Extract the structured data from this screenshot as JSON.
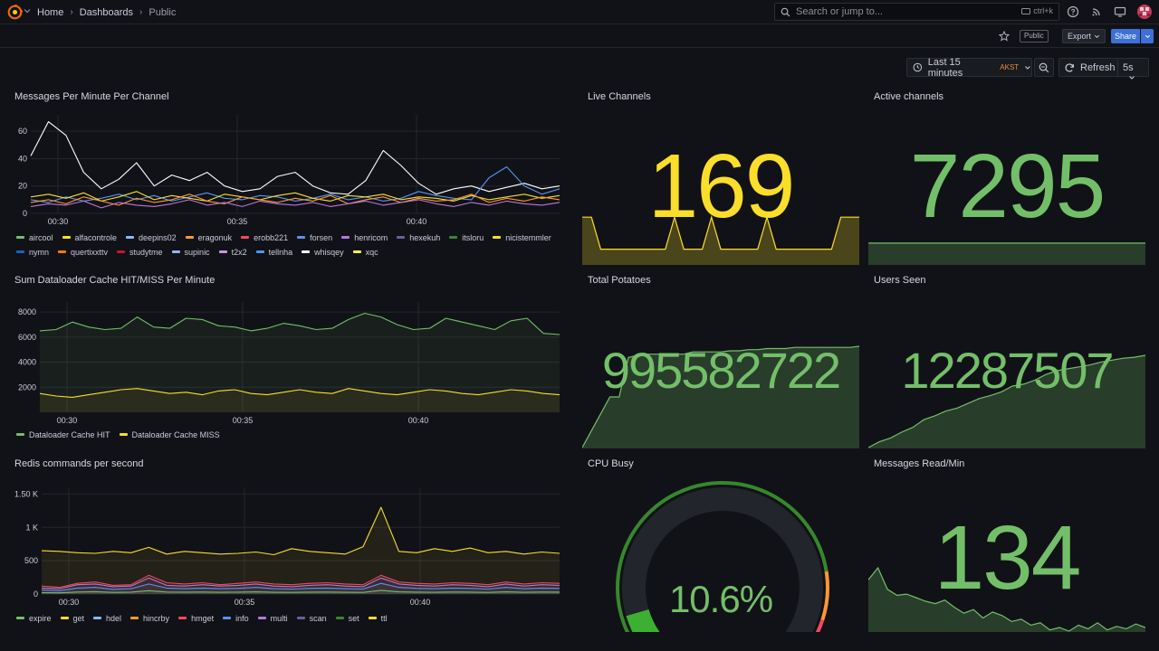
{
  "topbar": {
    "breadcrumb": [
      "Home",
      "Dashboards",
      "Public"
    ],
    "search_placeholder": "Search or jump to...",
    "search_shortcut": "ctrl+k",
    "icons": [
      "grafana-logo",
      "help-icon",
      "news-icon",
      "kiosk-icon",
      "avatar"
    ]
  },
  "toolbar": {
    "public_badge": "Public",
    "export_label": "Export",
    "share_label": "Share",
    "time_range": "Last 15 minutes",
    "timezone": "AKST",
    "refresh_label": "Refresh",
    "refresh_interval": "5s"
  },
  "colors": {
    "background": "#111217",
    "green": "#73bf69",
    "yellow": "#fade2a",
    "orange": "#ff9830",
    "red": "#f2495c",
    "blue": "#5794f2",
    "purple": "#b877d9"
  },
  "panels": {
    "messages": {
      "title": "Messages Per Minute Per Channel",
      "legend": [
        {
          "name": "aircool",
          "color": "#73bf69"
        },
        {
          "name": "alfacontrole",
          "color": "#fade2a"
        },
        {
          "name": "deepins02",
          "color": "#8ab8ff"
        },
        {
          "name": "eragonuk",
          "color": "#ff9830"
        },
        {
          "name": "erobb221",
          "color": "#f2495c"
        },
        {
          "name": "forsen",
          "color": "#5794f2"
        },
        {
          "name": "henricom",
          "color": "#b877d9"
        },
        {
          "name": "hexekuh",
          "color": "#705da0"
        },
        {
          "name": "itsloru",
          "color": "#37872d"
        },
        {
          "name": "nicistemmler",
          "color": "#fade2a"
        },
        {
          "name": "nymn",
          "color": "#1f60c4"
        },
        {
          "name": "quertixxttv",
          "color": "#ff780a"
        },
        {
          "name": "studytme",
          "color": "#c4162a"
        },
        {
          "name": "supinic",
          "color": "#8ab8ff"
        },
        {
          "name": "t2x2",
          "color": "#ca95e5"
        },
        {
          "name": "tellnha",
          "color": "#5794f2"
        },
        {
          "name": "whisqey",
          "color": "#ffffff"
        },
        {
          "name": "xqc",
          "color": "#ffee52"
        }
      ]
    },
    "cache": {
      "title": "Sum Dataloader Cache HIT/MISS Per Minute",
      "legend": [
        {
          "name": "Dataloader Cache HIT",
          "color": "#73bf69"
        },
        {
          "name": "Dataloader Cache MISS",
          "color": "#fade2a"
        }
      ]
    },
    "redis": {
      "title": "Redis commands per second",
      "legend": [
        {
          "name": "expire",
          "color": "#73bf69"
        },
        {
          "name": "get",
          "color": "#fade2a"
        },
        {
          "name": "hdel",
          "color": "#8ab8ff"
        },
        {
          "name": "hincrby",
          "color": "#ff9830"
        },
        {
          "name": "hmget",
          "color": "#f2495c"
        },
        {
          "name": "info",
          "color": "#5794f2"
        },
        {
          "name": "multi",
          "color": "#b877d9"
        },
        {
          "name": "scan",
          "color": "#705da0"
        },
        {
          "name": "set",
          "color": "#37872d"
        },
        {
          "name": "ttl",
          "color": "#fade2a"
        }
      ]
    },
    "live_channels": {
      "title": "Live Channels",
      "value": "169"
    },
    "active_channels": {
      "title": "Active channels",
      "value": "7295"
    },
    "total_potatoes": {
      "title": "Total Potatoes",
      "value": "995582722"
    },
    "users_seen": {
      "title": "Users Seen",
      "value": "12287507"
    },
    "cpu_busy": {
      "title": "CPU Busy",
      "value": "10.6%",
      "percent": 10.6
    },
    "messages_read": {
      "title": "Messages Read/Min",
      "value": "134"
    }
  },
  "chart_data": [
    {
      "type": "line",
      "title": "Messages Per Minute Per Channel",
      "x_ticks": [
        "00:30",
        "00:35",
        "00:40"
      ],
      "y_ticks": [
        "0",
        "20",
        "40",
        "60"
      ],
      "ylim": [
        0,
        72
      ],
      "series": [
        {
          "name": "whisqey",
          "values": [
            42,
            67,
            57,
            30,
            18,
            25,
            37,
            20,
            28,
            24,
            30,
            20,
            16,
            18,
            27,
            30,
            20,
            15,
            14,
            24,
            46,
            35,
            22,
            14,
            18,
            20,
            16,
            19,
            22,
            18,
            20
          ]
        },
        {
          "name": "forsen",
          "values": [
            10,
            8,
            12,
            9,
            11,
            14,
            10,
            13,
            9,
            12,
            15,
            11,
            10,
            13,
            12,
            9,
            11,
            14,
            10,
            12,
            9,
            11,
            16,
            13,
            11,
            10,
            26,
            34,
            20,
            14,
            18
          ]
        },
        {
          "name": "nicistemmler",
          "values": [
            12,
            14,
            11,
            15,
            9,
            12,
            16,
            10,
            13,
            11,
            9,
            14,
            12,
            10,
            13,
            15,
            11,
            9,
            13,
            12,
            14,
            10,
            12,
            11,
            9,
            13,
            10,
            12,
            14,
            11,
            13
          ]
        },
        {
          "name": "eragonuk",
          "values": [
            8,
            10,
            7,
            12,
            9,
            6,
            11,
            8,
            10,
            14,
            9,
            7,
            12,
            10,
            8,
            11,
            9,
            13,
            7,
            10,
            12,
            8,
            11,
            9,
            10,
            14,
            8,
            11,
            9,
            12,
            10
          ]
        },
        {
          "name": "henricom",
          "values": [
            5,
            7,
            6,
            9,
            4,
            8,
            6,
            5,
            7,
            10,
            6,
            8,
            5,
            9,
            7,
            6,
            8,
            5,
            7,
            9,
            6,
            8,
            10,
            7,
            5,
            8,
            6,
            9,
            7,
            6,
            8
          ]
        }
      ]
    },
    {
      "type": "area",
      "title": "Sum Dataloader Cache HIT/MISS Per Minute",
      "x_ticks": [
        "00:30",
        "00:35",
        "00:40"
      ],
      "y_ticks": [
        "2000",
        "4000",
        "6000",
        "8000"
      ],
      "ylim": [
        0,
        8800
      ],
      "series": [
        {
          "name": "Dataloader Cache HIT",
          "values": [
            6500,
            6600,
            7200,
            6800,
            6600,
            6700,
            7600,
            6800,
            6700,
            7500,
            7400,
            6900,
            6800,
            6500,
            6700,
            7100,
            6900,
            6600,
            6700,
            7400,
            7900,
            7600,
            7000,
            6600,
            6700,
            7500,
            7200,
            6900,
            6600,
            7300,
            7500,
            6300,
            6200
          ]
        },
        {
          "name": "Dataloader Cache MISS",
          "values": [
            1500,
            1300,
            1200,
            1400,
            1600,
            1800,
            1900,
            1700,
            1500,
            1600,
            1400,
            1700,
            1800,
            1500,
            1400,
            1600,
            1800,
            1600,
            1500,
            1900,
            1700,
            1500,
            1400,
            1600,
            1800,
            1700,
            1500,
            1400,
            1600,
            1800,
            1700,
            1500,
            1400
          ]
        }
      ]
    },
    {
      "type": "area",
      "title": "Redis commands per second",
      "x_ticks": [
        "00:30",
        "00:35",
        "00:40"
      ],
      "y_ticks": [
        "0",
        "500",
        "1 K",
        "1.50 K"
      ],
      "ylim": [
        0,
        1600
      ],
      "series": [
        {
          "name": "get",
          "values": [
            650,
            640,
            620,
            610,
            640,
            620,
            700,
            600,
            640,
            620,
            600,
            610,
            630,
            590,
            680,
            640,
            620,
            600,
            710,
            1300,
            640,
            620,
            680,
            640,
            690,
            620,
            640,
            600,
            630,
            610
          ]
        },
        {
          "name": "hmget",
          "values": [
            120,
            100,
            160,
            180,
            130,
            140,
            280,
            170,
            150,
            170,
            140,
            160,
            180,
            150,
            140,
            160,
            170,
            150,
            140,
            280,
            180,
            160,
            150,
            170,
            160,
            140,
            180,
            150,
            170,
            160
          ]
        },
        {
          "name": "multi",
          "values": [
            90,
            80,
            140,
            150,
            110,
            120,
            240,
            130,
            120,
            140,
            120,
            130,
            150,
            120,
            110,
            130,
            140,
            120,
            110,
            240,
            150,
            130,
            120,
            140,
            130,
            110,
            150,
            120,
            140,
            130
          ]
        },
        {
          "name": "info",
          "values": [
            60,
            50,
            90,
            100,
            70,
            80,
            150,
            90,
            80,
            90,
            80,
            85,
            100,
            80,
            75,
            85,
            90,
            80,
            75,
            160,
            100,
            85,
            80,
            90,
            85,
            75,
            100,
            80,
            90,
            85
          ]
        },
        {
          "name": "expire",
          "values": [
            20,
            18,
            30,
            35,
            25,
            28,
            50,
            30,
            28,
            30,
            26,
            28,
            32,
            26,
            24,
            28,
            30,
            26,
            24,
            55,
            32,
            28,
            26,
            30,
            28,
            24,
            32,
            26,
            30,
            28
          ]
        }
      ]
    },
    {
      "type": "area",
      "title": "Live Channels",
      "values": [
        169,
        169,
        156,
        156,
        156,
        156,
        156,
        156,
        156,
        156,
        169,
        156,
        156,
        156,
        169,
        156,
        156,
        156,
        156,
        156,
        169,
        156,
        156,
        156,
        156,
        156,
        156,
        156,
        169,
        169,
        169
      ],
      "ylim": [
        150,
        172
      ]
    },
    {
      "type": "area",
      "title": "Total Potatoes",
      "values": [
        10,
        25,
        40,
        55,
        55,
        90,
        92,
        93,
        93,
        93,
        93,
        93,
        95,
        95,
        95,
        95,
        96,
        96,
        97,
        97,
        98,
        98,
        98,
        99,
        99,
        99,
        99,
        99,
        99,
        99,
        100
      ]
    },
    {
      "type": "area",
      "title": "Users Seen",
      "values": [
        4,
        10,
        14,
        20,
        25,
        33,
        37,
        42,
        45,
        50,
        55,
        58,
        62,
        68,
        70,
        74,
        80,
        84,
        86,
        88,
        90,
        93,
        95,
        97,
        98,
        100
      ]
    },
    {
      "type": "area",
      "title": "Messages Read/Min",
      "values": [
        50,
        60,
        42,
        37,
        38,
        35,
        32,
        30,
        33,
        27,
        22,
        25,
        18,
        23,
        20,
        15,
        17,
        12,
        14,
        8,
        10,
        7,
        12,
        9,
        14,
        8,
        11,
        9,
        13,
        10
      ]
    }
  ]
}
